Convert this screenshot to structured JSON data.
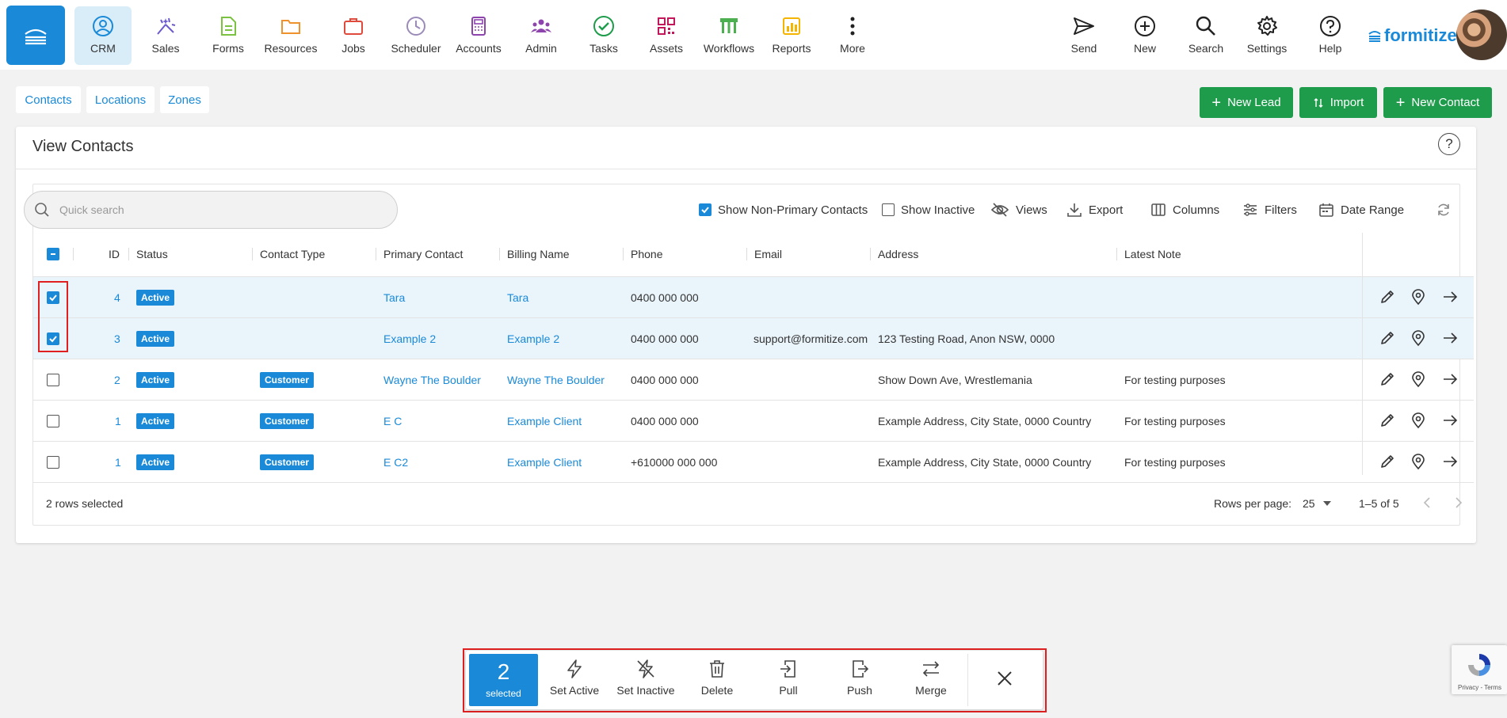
{
  "nav": {
    "items": [
      {
        "label": "CRM",
        "icon": "crm-icon"
      },
      {
        "label": "Sales",
        "icon": "sales-icon"
      },
      {
        "label": "Forms",
        "icon": "forms-icon"
      },
      {
        "label": "Resources",
        "icon": "resources-icon"
      },
      {
        "label": "Jobs",
        "icon": "jobs-icon"
      },
      {
        "label": "Scheduler",
        "icon": "scheduler-icon"
      },
      {
        "label": "Accounts",
        "icon": "accounts-icon"
      },
      {
        "label": "Admin",
        "icon": "admin-icon"
      },
      {
        "label": "Tasks",
        "icon": "tasks-icon"
      },
      {
        "label": "Assets",
        "icon": "assets-icon"
      },
      {
        "label": "Workflows",
        "icon": "workflows-icon"
      },
      {
        "label": "Reports",
        "icon": "reports-icon"
      },
      {
        "label": "More",
        "icon": "more-icon"
      }
    ],
    "right": [
      {
        "label": "Send",
        "icon": "send-icon"
      },
      {
        "label": "New",
        "icon": "plus-circle-icon"
      },
      {
        "label": "Search",
        "icon": "search-icon"
      },
      {
        "label": "Settings",
        "icon": "gear-icon"
      },
      {
        "label": "Help",
        "icon": "help-icon"
      }
    ],
    "brand": "formitize"
  },
  "tabs": [
    "Contacts",
    "Locations",
    "Zones"
  ],
  "actions": {
    "new_lead": "New Lead",
    "import": "Import",
    "new_contact": "New Contact"
  },
  "card": {
    "title": "View Contacts",
    "help": "?"
  },
  "toolbar": {
    "search_placeholder": "Quick search",
    "show_non_primary": "Show Non-Primary Contacts",
    "show_non_primary_checked": true,
    "show_inactive": "Show Inactive",
    "show_inactive_checked": false,
    "views": "Views",
    "export": "Export",
    "columns": "Columns",
    "filters": "Filters",
    "date_range": "Date Range"
  },
  "table": {
    "headers": {
      "id": "ID",
      "status": "Status",
      "contact_type": "Contact Type",
      "primary_contact": "Primary Contact",
      "billing_name": "Billing Name",
      "phone": "Phone",
      "email": "Email",
      "address": "Address",
      "latest_note": "Latest Note"
    },
    "rows": [
      {
        "selected": true,
        "id": "4",
        "status": "Active",
        "contact_type": "",
        "primary_contact": "Tara",
        "billing_name": "Tara",
        "phone": "0400 000 000",
        "email": "",
        "address": "",
        "latest_note": ""
      },
      {
        "selected": true,
        "id": "3",
        "status": "Active",
        "contact_type": "",
        "primary_contact": "Example 2",
        "billing_name": "Example 2",
        "phone": "0400 000 000",
        "email": "support@formitize.com",
        "address": "123 Testing Road, Anon NSW, 0000",
        "latest_note": ""
      },
      {
        "selected": false,
        "id": "2",
        "status": "Active",
        "contact_type": "Customer",
        "primary_contact": "Wayne The Boulder",
        "billing_name": "Wayne The Boulder",
        "phone": "0400 000 000",
        "email": "",
        "address": "Show Down Ave, Wrestlemania",
        "latest_note": "For testing purposes"
      },
      {
        "selected": false,
        "id": "1",
        "status": "Active",
        "contact_type": "Customer",
        "primary_contact": "E C",
        "billing_name": "Example Client",
        "phone": "0400 000 000",
        "email": "",
        "address": "Example Address, City State, 0000 Country",
        "latest_note": "For testing purposes"
      },
      {
        "selected": false,
        "id": "1",
        "status": "Active",
        "contact_type": "Customer",
        "primary_contact": "E C2",
        "billing_name": "Example Client",
        "phone": "+610000 000 000",
        "email": "",
        "address": "Example Address, City State, 0000 Country",
        "latest_note": "For testing purposes"
      }
    ],
    "row_actions": [
      "edit-icon",
      "location-pin-icon",
      "arrow-right-icon"
    ]
  },
  "footer": {
    "selected_text": "2 rows selected",
    "rows_per_page_label": "Rows per page:",
    "rows_per_page_value": "25",
    "range": "1–5 of 5"
  },
  "bulk": {
    "count": "2",
    "count_label": "selected",
    "actions": [
      "Set Active",
      "Set Inactive",
      "Delete",
      "Pull",
      "Push",
      "Merge"
    ]
  },
  "recaptcha": {
    "text": "Privacy - Terms"
  },
  "colors": {
    "accent": "#1a8ad8",
    "green": "#1e9c4b",
    "highlight": "#e02020"
  }
}
